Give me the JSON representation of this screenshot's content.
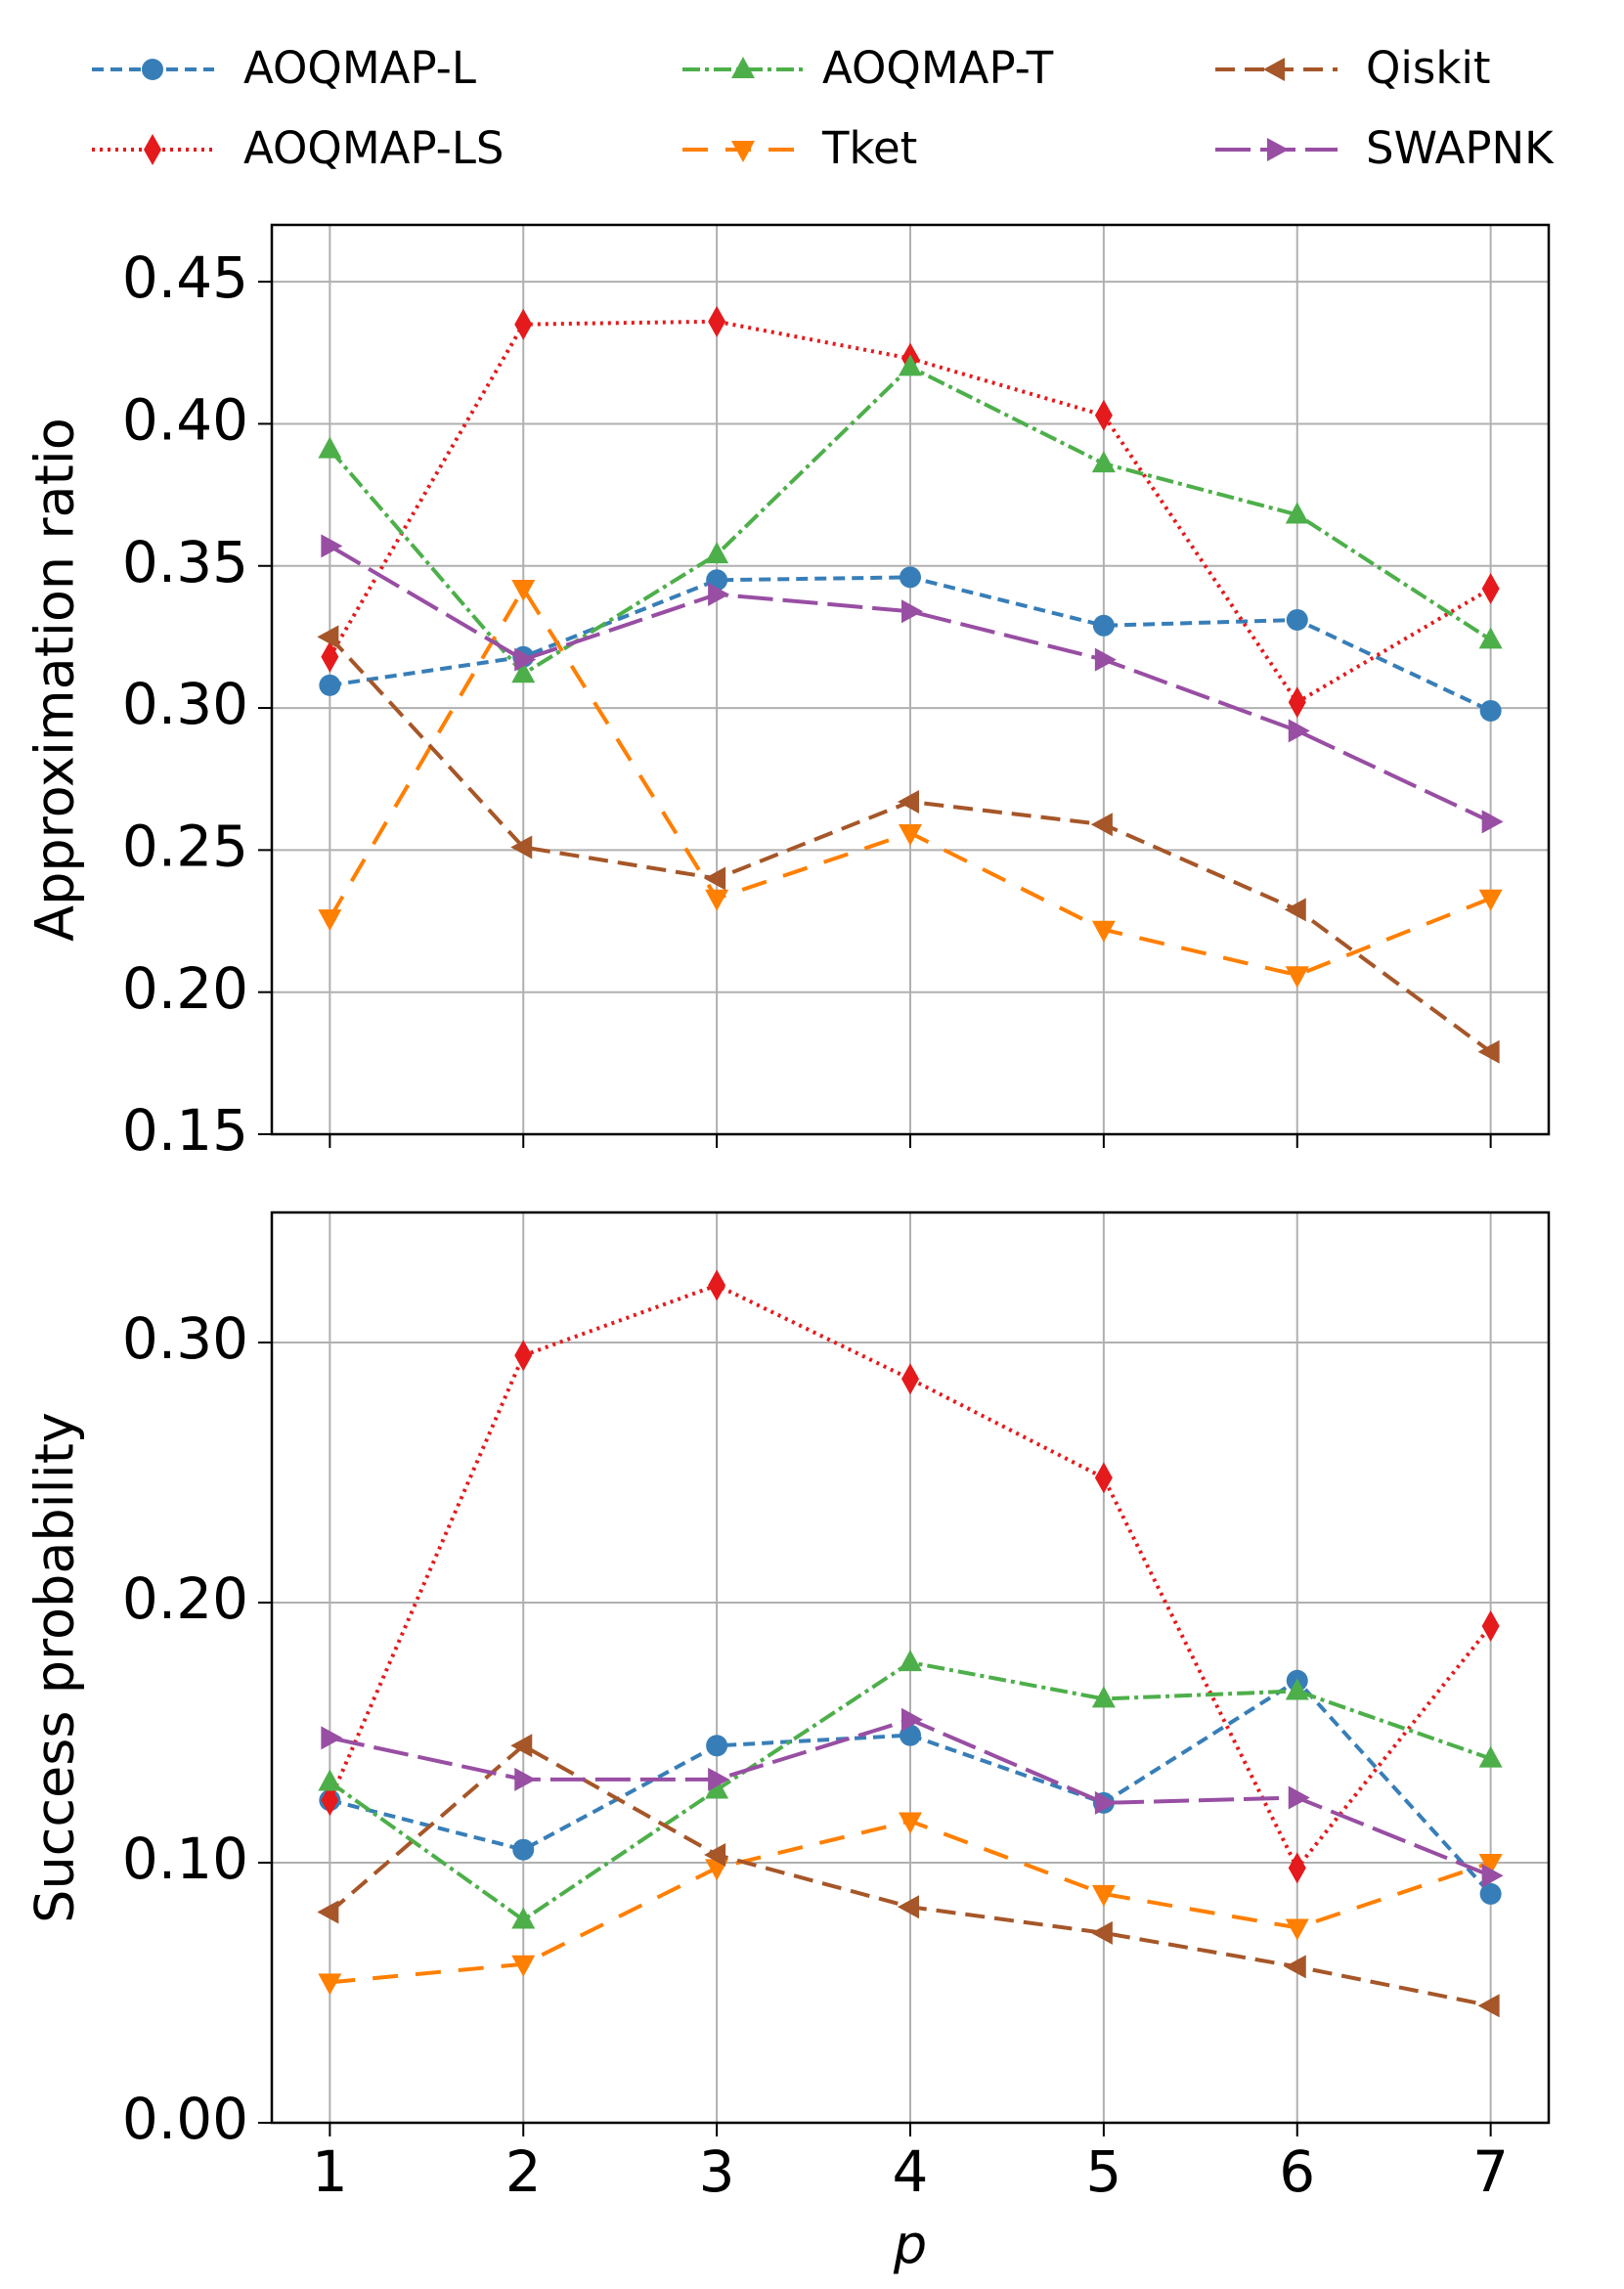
{
  "chart_data": [
    {
      "type": "line",
      "y_label": "Approximation ratio",
      "x": [
        1,
        2,
        3,
        4,
        5,
        6,
        7
      ],
      "xlim": [
        0.7,
        7.3
      ],
      "xticks": [
        1,
        2,
        3,
        4,
        5,
        6,
        7
      ],
      "xtick_labels": false,
      "ylim": [
        0.15,
        0.47
      ],
      "yticks": [
        0.15,
        {
          "value": 0.2,
          "label": "0.20"
        },
        0.25,
        {
          "value": 0.3,
          "label": "0.30"
        },
        0.35,
        {
          "value": 0.4,
          "label": "0.40"
        },
        0.45
      ],
      "grid": true,
      "series": [
        {
          "name": "AOQMAP-L",
          "color": "#377eb8",
          "marker": "circle",
          "dash": "12,7",
          "values": [
            0.308,
            0.318,
            0.345,
            0.346,
            0.329,
            0.331,
            0.299
          ]
        },
        {
          "name": "AOQMAP-LS",
          "color": "#e41a1c",
          "marker": "diamond",
          "dash": "3,5",
          "values": [
            0.318,
            0.435,
            0.436,
            0.423,
            0.403,
            0.302,
            0.342
          ]
        },
        {
          "name": "AOQMAP-T",
          "color": "#4daf4a",
          "marker": "triangle-up",
          "dash": "18,5,4,5",
          "values": [
            0.391,
            0.312,
            0.354,
            0.42,
            0.386,
            0.368,
            0.324
          ]
        },
        {
          "name": "Tket",
          "color": "#ff7f00",
          "marker": "triangle-down",
          "dash": "26,18",
          "values": [
            0.226,
            0.342,
            0.233,
            0.256,
            0.222,
            0.206,
            0.233
          ]
        },
        {
          "name": "Qiskit",
          "color": "#a65628",
          "marker": "triangle-left",
          "dash": "20,10",
          "values": [
            0.325,
            0.251,
            0.24,
            0.267,
            0.259,
            0.229,
            0.179
          ]
        },
        {
          "name": "SWAPNK",
          "color": "#984ea3",
          "marker": "triangle-right",
          "dash": "36,10",
          "values": [
            0.357,
            0.317,
            0.34,
            0.334,
            0.317,
            0.292,
            0.26
          ]
        }
      ]
    },
    {
      "type": "line",
      "y_label": "Success probability",
      "x_label": "p",
      "x": [
        1,
        2,
        3,
        4,
        5,
        6,
        7
      ],
      "xlim": [
        0.7,
        7.3
      ],
      "xticks": [
        1,
        2,
        3,
        4,
        5,
        6,
        7
      ],
      "ylim": [
        0,
        0.35
      ],
      "yticks": [
        {
          "value": 0,
          "label": "0.00"
        },
        {
          "value": 0.1,
          "label": "0.10"
        },
        {
          "value": 0.2,
          "label": "0.20"
        },
        {
          "value": 0.3,
          "label": "0.30"
        }
      ],
      "grid": true,
      "series": [
        {
          "values": [
            0.124,
            0.105,
            0.145,
            0.149,
            0.123,
            0.17,
            0.088
          ]
        },
        {
          "values": [
            0.124,
            0.295,
            0.322,
            0.286,
            0.248,
            0.098,
            0.191
          ]
        },
        {
          "values": [
            0.131,
            0.078,
            0.128,
            0.177,
            0.163,
            0.166,
            0.14
          ]
        },
        {
          "values": [
            0.054,
            0.061,
            0.098,
            0.116,
            0.088,
            0.075,
            0.1
          ]
        },
        {
          "values": [
            0.081,
            0.145,
            0.103,
            0.083,
            0.073,
            0.06,
            0.045
          ]
        },
        {
          "values": [
            0.148,
            0.132,
            0.132,
            0.155,
            0.123,
            0.125,
            0.095
          ]
        }
      ]
    }
  ]
}
